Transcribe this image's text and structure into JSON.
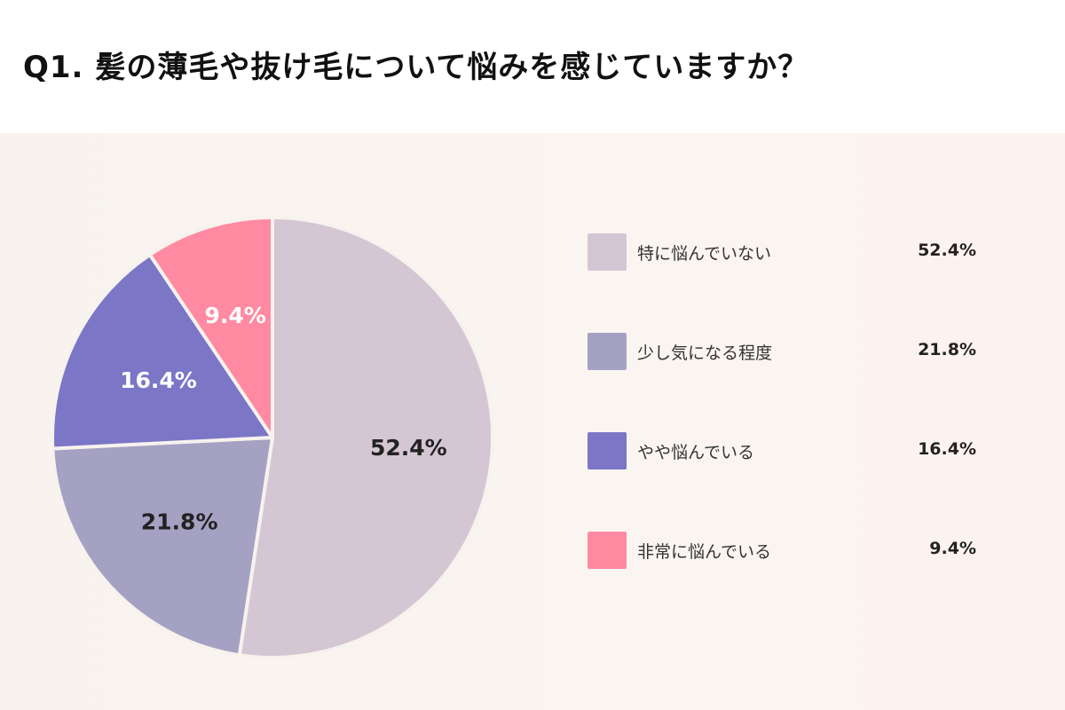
{
  "title": "Q1. 髪の薄毛や抜け毛について悩みを感じていますか？",
  "chart_data": {
    "type": "pie",
    "slices": [
      {
        "label": "特に悩んでいない",
        "value": 52.4,
        "display": "52.4%",
        "color": "#d4c7d3",
        "text_color": "#222222"
      },
      {
        "label": "少し気になる程度",
        "value": 21.8,
        "display": "21.8%",
        "color": "#a5a1c2",
        "text_color": "#222222"
      },
      {
        "label": "やや悩んでいる",
        "value": 16.4,
        "display": "16.4%",
        "color": "#7b76c6",
        "text_color": "#ffffff"
      },
      {
        "label": "非常に悩んでいる",
        "value": 9.4,
        "display": "9.4%",
        "color": "#ff8aa1",
        "text_color": "#ffffff"
      }
    ],
    "start_angle": "12 o'clock",
    "direction": "clockwise",
    "legend_position": "right"
  }
}
